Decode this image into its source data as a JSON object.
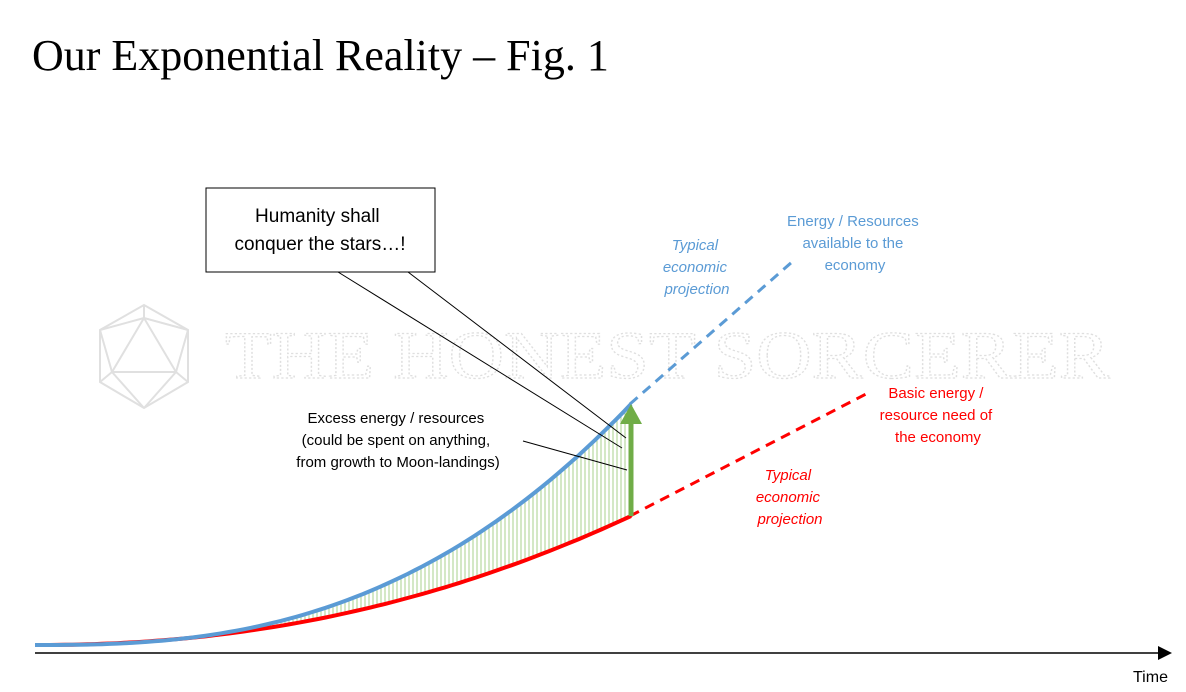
{
  "title": "Our Exponential Reality – Fig. 1",
  "watermark": "THE HONEST SORCERER",
  "axis": {
    "x_label": "Time"
  },
  "callout": {
    "lines": [
      "Humanity shall",
      "conquer the stars…!"
    ]
  },
  "excess_label": {
    "lines": [
      "Excess energy / resources",
      "(could be spent on anything,",
      "from growth to Moon-landings)"
    ]
  },
  "energy_label": {
    "lines": [
      "Energy / Resources",
      "available to the",
      "economy"
    ]
  },
  "energy_projection_label": {
    "lines": [
      "Typical",
      "economic",
      "projection"
    ]
  },
  "need_label": {
    "lines": [
      "Basic energy /",
      "resource need of",
      "the economy"
    ]
  },
  "need_projection_label": {
    "lines": [
      "Typical",
      "economic",
      "projection"
    ]
  },
  "colors": {
    "energy": "#5b9bd5",
    "need": "#ff0000",
    "excess_fill": "#a9d18e",
    "arrow": "#70ad47",
    "watermark": "#d9d9d9"
  }
}
